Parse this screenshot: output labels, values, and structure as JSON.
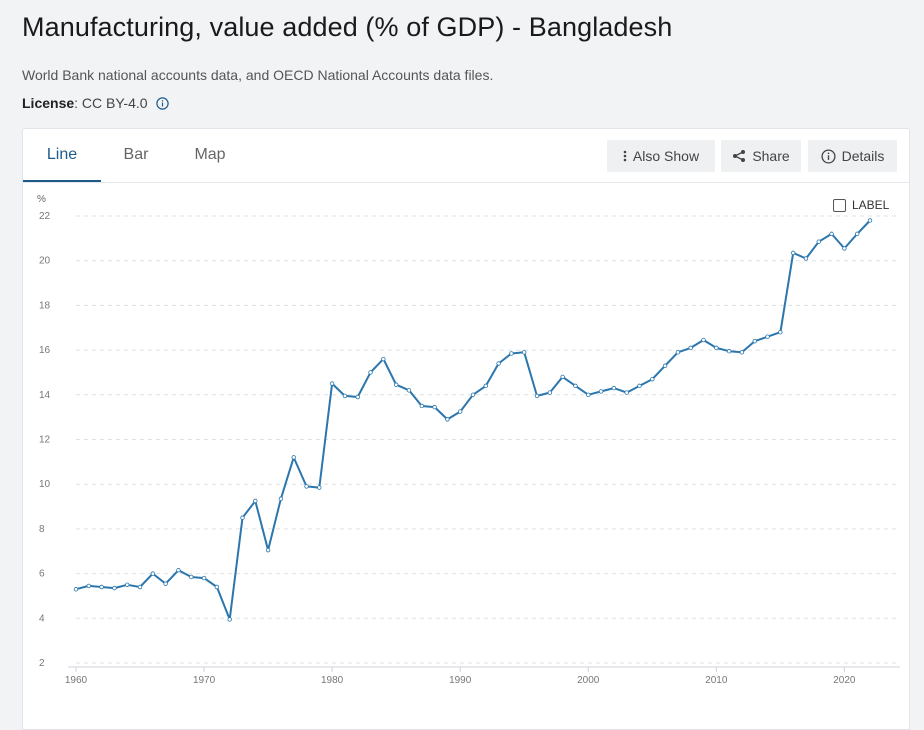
{
  "page": {
    "title": "Manufacturing, value added (% of GDP) - Bangladesh",
    "source": "World Bank national accounts data, and OECD National Accounts data files.",
    "license_key": "License",
    "license_value": ": CC BY-4.0"
  },
  "tabs": [
    {
      "label": "Line",
      "active": true
    },
    {
      "label": "Bar",
      "active": false
    },
    {
      "label": "Map",
      "active": false
    }
  ],
  "toolbar": {
    "also_show": "Also Show",
    "share": "Share",
    "details": "Details"
  },
  "label_toggle": {
    "label": "LABEL",
    "checked": false
  },
  "colors": {
    "series": "#2b76ad",
    "active_tab": "#1d5a8c"
  },
  "icons": {
    "info": "info-icon",
    "also_show": "kebab-icon",
    "share": "share-icon",
    "details": "info-circle-icon"
  },
  "chart_data": {
    "type": "line",
    "ylabel": "%",
    "ylim": [
      2,
      22
    ],
    "xlim": [
      1960,
      2022
    ],
    "yticks": [
      2,
      4,
      6,
      8,
      10,
      12,
      14,
      16,
      18,
      20,
      22
    ],
    "xticks": [
      1960,
      1970,
      1980,
      1990,
      2000,
      2010,
      2020
    ],
    "grid": true,
    "series": [
      {
        "x": [
          1960,
          1961,
          1962,
          1963,
          1964,
          1965,
          1966,
          1967,
          1968,
          1969,
          1970,
          1971,
          1972,
          1973,
          1974,
          1975,
          1976,
          1977,
          1978,
          1979,
          1980,
          1981,
          1982,
          1983,
          1984,
          1985,
          1986,
          1987,
          1988,
          1989,
          1990,
          1991,
          1992,
          1993,
          1994,
          1995,
          1996,
          1997,
          1998,
          1999,
          2000,
          2001,
          2002,
          2003,
          2004,
          2005,
          2006,
          2007,
          2008,
          2009,
          2010,
          2011,
          2012,
          2013,
          2014,
          2015,
          2016,
          2017,
          2018,
          2019,
          2020,
          2021,
          2022
        ],
        "values": [
          5.3,
          5.45,
          5.4,
          5.35,
          5.5,
          5.4,
          6.0,
          5.55,
          6.15,
          5.85,
          5.8,
          5.4,
          3.95,
          8.5,
          9.25,
          7.05,
          9.35,
          11.2,
          9.9,
          9.85,
          14.5,
          13.95,
          13.9,
          15.0,
          15.6,
          14.45,
          14.2,
          13.5,
          13.45,
          12.9,
          13.25,
          14.0,
          14.4,
          15.4,
          15.85,
          15.9,
          13.95,
          14.1,
          14.8,
          14.4,
          14.0,
          14.15,
          14.3,
          14.1,
          14.4,
          14.7,
          15.3,
          15.9,
          16.1,
          16.45,
          16.1,
          15.95,
          15.9,
          16.4,
          16.6,
          16.8,
          20.35,
          20.1,
          20.85,
          21.2,
          20.55,
          21.2,
          21.8
        ]
      }
    ]
  }
}
